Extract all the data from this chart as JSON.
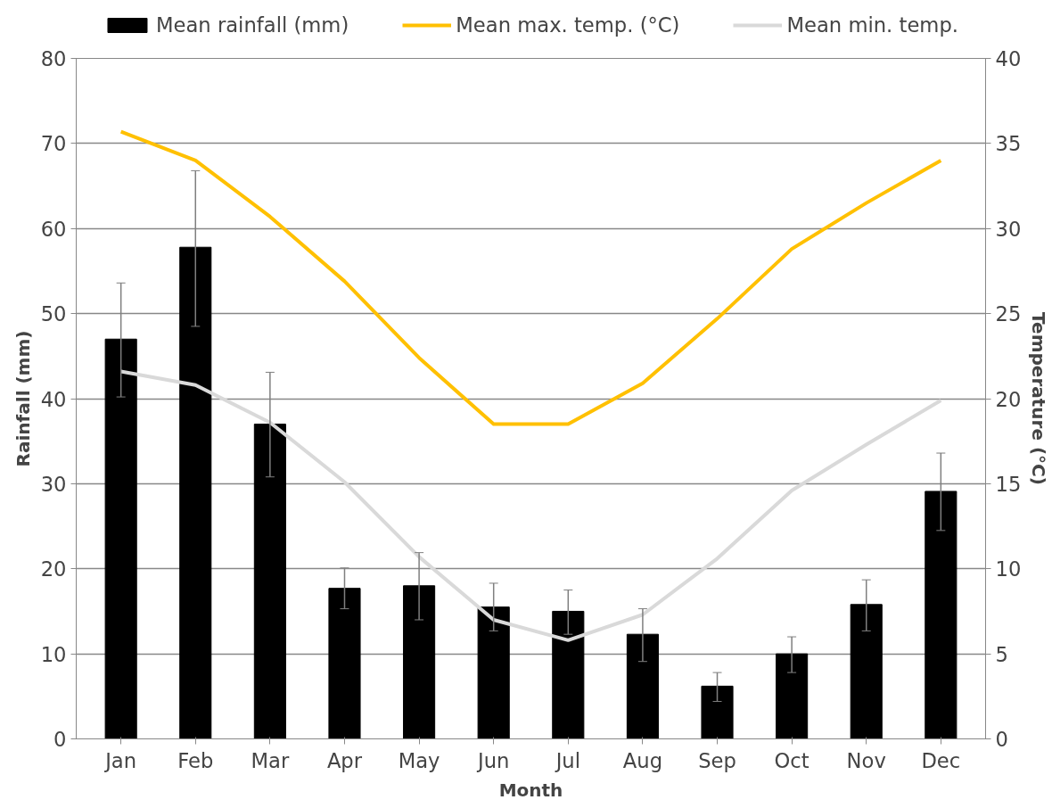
{
  "chart_data": {
    "type": "bar",
    "xlabel": "Month",
    "ylabel": "Rainfall (mm)",
    "y2label": "Temperature (°C)",
    "categories": [
      "Jan",
      "Feb",
      "Mar",
      "Apr",
      "May",
      "Jun",
      "Jul",
      "Aug",
      "Sep",
      "Oct",
      "Nov",
      "Dec"
    ],
    "series": [
      {
        "name": "Mean rainfall (mm)",
        "color": "#000000",
        "values": [
          47,
          57.8,
          37,
          17.7,
          18,
          15.5,
          15,
          12.3,
          6.2,
          10,
          15.8,
          29.1
        ],
        "errors": [
          [
            40.2,
            53.6
          ],
          [
            48.5,
            66.8
          ],
          [
            30.8,
            43.1
          ],
          [
            15.3,
            20.1
          ],
          [
            14,
            21.9
          ],
          [
            12.7,
            18.3
          ],
          [
            12.3,
            17.5
          ],
          [
            9.1,
            15.3
          ],
          [
            4.4,
            7.8
          ],
          [
            7.8,
            12
          ],
          [
            12.7,
            18.7
          ],
          [
            24.5,
            33.6
          ]
        ]
      },
      {
        "name": "Mean max. temp. (°C)",
        "type": "line",
        "axis": "y2",
        "color": "#ffc000",
        "values": [
          35.7,
          34.0,
          30.7,
          26.9,
          22.4,
          18.5,
          18.5,
          20.9,
          24.7,
          28.8,
          31.5,
          34.0
        ]
      },
      {
        "name": "Mean min. temp.",
        "type": "line",
        "axis": "y2",
        "color": "#d9d9d9",
        "values": [
          21.6,
          20.8,
          18.6,
          15.1,
          10.7,
          7.0,
          5.8,
          7.3,
          10.6,
          14.6,
          17.3,
          19.9
        ]
      }
    ],
    "ylim": [
      0,
      80
    ],
    "yticks": [
      0,
      10,
      20,
      30,
      40,
      50,
      60,
      70,
      80
    ],
    "y2lim": [
      0,
      40
    ],
    "y2ticks": [
      0,
      5,
      10,
      15,
      20,
      25,
      30,
      35,
      40
    ],
    "grid": "y",
    "legend": "top"
  }
}
